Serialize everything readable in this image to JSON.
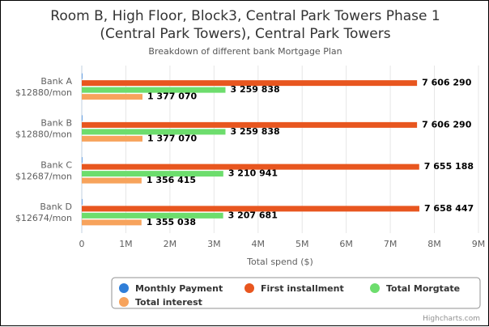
{
  "chart_data": {
    "type": "bar",
    "orientation": "horizontal",
    "title_lines": [
      "Room B, High Floor, Block3, Central Park Towers Phase 1",
      "(Central Park Towers), Central Park Towers"
    ],
    "subtitle": "Breakdown of different bank Mortgage Plan",
    "categories": [
      {
        "name": "Bank A",
        "sub": "$12880/mon"
      },
      {
        "name": "Bank B",
        "sub": "$12880/mon"
      },
      {
        "name": "Bank C",
        "sub": "$12687/mon"
      },
      {
        "name": "Bank D",
        "sub": "$12674/mon"
      }
    ],
    "series": [
      {
        "name": "Monthly Payment",
        "color": "#2f7ed8",
        "values": [
          12880,
          12880,
          12687,
          12674
        ],
        "labels": [
          "",
          "",
          "",
          ""
        ]
      },
      {
        "name": "First installment",
        "color": "#e8561f",
        "values": [
          7606290,
          7606290,
          7655188,
          7658447
        ],
        "labels": [
          "7 606 290",
          "7 606 290",
          "7 655 188",
          "7 658 447"
        ]
      },
      {
        "name": "Total Morgtate",
        "color": "#6ddd6d",
        "values": [
          3259838,
          3259838,
          3210941,
          3207681
        ],
        "labels": [
          "3 259 838",
          "3 259 838",
          "3 210 941",
          "3 207 681"
        ]
      },
      {
        "name": "Total interest",
        "color": "#f7a35c",
        "values": [
          1377070,
          1377070,
          1356415,
          1355038
        ],
        "labels": [
          "1 377 070",
          "1 377 070",
          "1 356 415",
          "1 355 038"
        ]
      }
    ],
    "xlabel": "Total spend ($)",
    "xlim": [
      0,
      9000000
    ],
    "ticks": [
      {
        "value": 0,
        "label": "0"
      },
      {
        "value": 1000000,
        "label": "1M"
      },
      {
        "value": 2000000,
        "label": "2M"
      },
      {
        "value": 3000000,
        "label": "3M"
      },
      {
        "value": 4000000,
        "label": "4M"
      },
      {
        "value": 5000000,
        "label": "5M"
      },
      {
        "value": 6000000,
        "label": "6M"
      },
      {
        "value": 7000000,
        "label": "7M"
      },
      {
        "value": 8000000,
        "label": "8M"
      },
      {
        "value": 9000000,
        "label": "9M"
      }
    ],
    "grid": true,
    "legend_position": "bottom"
  },
  "credit": "Highcharts.com"
}
